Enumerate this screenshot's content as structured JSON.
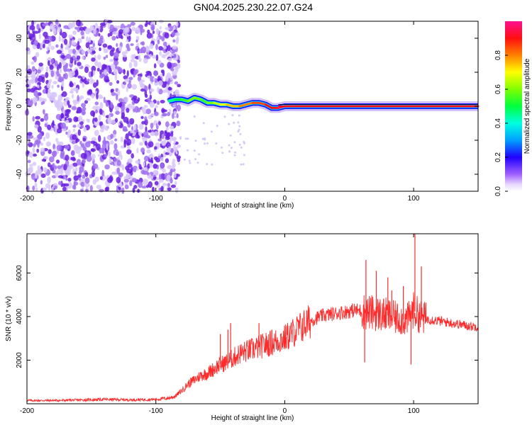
{
  "title": "GN04.2025.230.22.07.G24",
  "chart_data": [
    {
      "type": "heatmap",
      "xlabel": "Height of straight line (km)",
      "ylabel": "Frequency (Hz)",
      "xlim": [
        -200,
        150
      ],
      "ylim": [
        -50,
        50
      ],
      "xticks": [
        -200,
        -100,
        0,
        100
      ],
      "yticks": [
        -40,
        -20,
        0,
        20,
        40
      ],
      "colorbar": {
        "label": "Normalized spectral amplitude",
        "range": [
          0,
          1
        ],
        "ticks": [
          0.0,
          0.2,
          0.4,
          0.6,
          0.8
        ]
      },
      "noise_region": {
        "x_range": [
          -200,
          -82
        ],
        "amplitude": 0.05
      },
      "ridge": {
        "x": [
          -90,
          -85,
          -80,
          -75,
          -70,
          -65,
          -60,
          -55,
          -50,
          -45,
          -40,
          -35,
          -30,
          -25,
          -20,
          -15,
          -10,
          -5,
          0,
          20,
          40,
          60,
          80,
          100,
          120,
          150
        ],
        "y": [
          3,
          4,
          4,
          3,
          5,
          4,
          2,
          2,
          1,
          1,
          0,
          0,
          1,
          2,
          2,
          1,
          -1,
          -1,
          0,
          0,
          0,
          0,
          0,
          0,
          0,
          0
        ],
        "amplitude": [
          0.35,
          0.45,
          0.5,
          0.55,
          0.6,
          0.6,
          0.55,
          0.6,
          0.65,
          0.7,
          0.75,
          0.75,
          0.8,
          0.8,
          0.85,
          0.85,
          0.9,
          0.9,
          0.95,
          0.95,
          0.95,
          0.95,
          0.95,
          0.95,
          0.95,
          0.95
        ]
      }
    },
    {
      "type": "line",
      "xlabel": "Height of straight line (km)",
      "ylabel": "SNR (10 * v/v)",
      "xlim": [
        -200,
        150
      ],
      "ylim": [
        0,
        7800
      ],
      "xticks": [
        -200,
        -100,
        0,
        100
      ],
      "yticks": [
        2000,
        4000,
        6000
      ],
      "series": [
        {
          "color": "#ff2a2a",
          "x": [
            -200,
            -180,
            -160,
            -140,
            -120,
            -100,
            -90,
            -85,
            -80,
            -75,
            -70,
            -65,
            -60,
            -55,
            -50,
            -45,
            -40,
            -35,
            -30,
            -25,
            -20,
            -15,
            -10,
            -5,
            0,
            5,
            10,
            15,
            20,
            25,
            30,
            35,
            40,
            45,
            50,
            55,
            60,
            65,
            70,
            75,
            80,
            85,
            90,
            95,
            100,
            105,
            110,
            115,
            120,
            125,
            130,
            135,
            140,
            145,
            150
          ],
          "y": [
            150,
            150,
            170,
            200,
            180,
            200,
            260,
            350,
            600,
            900,
            1100,
            1300,
            1400,
            1600,
            1800,
            1900,
            2100,
            2300,
            2400,
            2500,
            2600,
            2700,
            2800,
            2900,
            3000,
            3200,
            3400,
            3600,
            3800,
            3950,
            4050,
            4100,
            4150,
            4200,
            4250,
            4300,
            4250,
            4200,
            4150,
            4100,
            4050,
            3950,
            3900,
            3850,
            4300,
            4000,
            3900,
            3850,
            3800,
            3750,
            3700,
            3650,
            3600,
            3550,
            3550
          ],
          "spikes": [
            {
              "x": -50,
              "y": 3200
            },
            {
              "x": -44,
              "y": 3400
            },
            {
              "x": -42,
              "y": 3700
            },
            {
              "x": -20,
              "y": 3700
            },
            {
              "x": -10,
              "y": 3400
            },
            {
              "x": 63,
              "y": 6600
            },
            {
              "x": 71,
              "y": 6100
            },
            {
              "x": 80,
              "y": 5800
            },
            {
              "x": 83,
              "y": 5200
            },
            {
              "x": 92,
              "y": 5400
            },
            {
              "x": 101,
              "y": 7800
            },
            {
              "x": 106,
              "y": 6300
            },
            {
              "x": 62,
              "y": 1900
            },
            {
              "x": 98,
              "y": 1800
            }
          ]
        }
      ]
    }
  ]
}
